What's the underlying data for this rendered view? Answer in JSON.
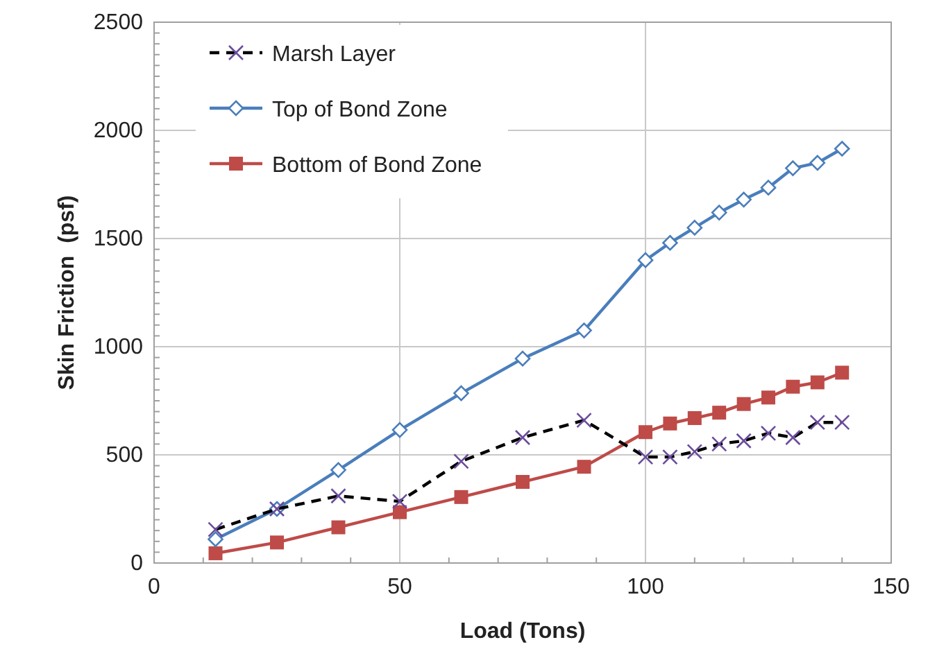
{
  "chart_data": {
    "type": "line",
    "xlabel": "Load (Tons)",
    "ylabel": "Skin Friction  (psf)",
    "x": [
      12.5,
      25,
      37.5,
      50,
      62.5,
      75,
      87.5,
      100,
      105,
      110,
      115,
      120,
      125,
      130,
      135,
      140
    ],
    "xlim": [
      0,
      150
    ],
    "xticks": [
      0,
      50,
      100,
      150
    ],
    "ylim": [
      0,
      2500
    ],
    "yticks": [
      0,
      500,
      1000,
      1500,
      2000,
      2500
    ],
    "grid": true,
    "legend": "top left",
    "series": [
      {
        "name": "Marsh Layer",
        "color": "#000000",
        "marker": "cross",
        "line_style": "dashed",
        "values": [
          155,
          250,
          310,
          285,
          470,
          580,
          660,
          490,
          490,
          515,
          550,
          565,
          600,
          580,
          650,
          650
        ]
      },
      {
        "name": "Top of Bond Zone",
        "color": "#4a7ebb",
        "marker": "diamond",
        "line_style": "solid",
        "values": [
          110,
          250,
          430,
          615,
          785,
          945,
          1075,
          1400,
          1480,
          1550,
          1620,
          1680,
          1735,
          1825,
          1850,
          1915
        ]
      },
      {
        "name": "Bottom of Bond Zone",
        "color": "#be4b48",
        "marker": "square",
        "line_style": "solid",
        "values": [
          45,
          95,
          165,
          235,
          305,
          375,
          445,
          605,
          645,
          670,
          695,
          735,
          765,
          815,
          835,
          880
        ]
      }
    ]
  }
}
